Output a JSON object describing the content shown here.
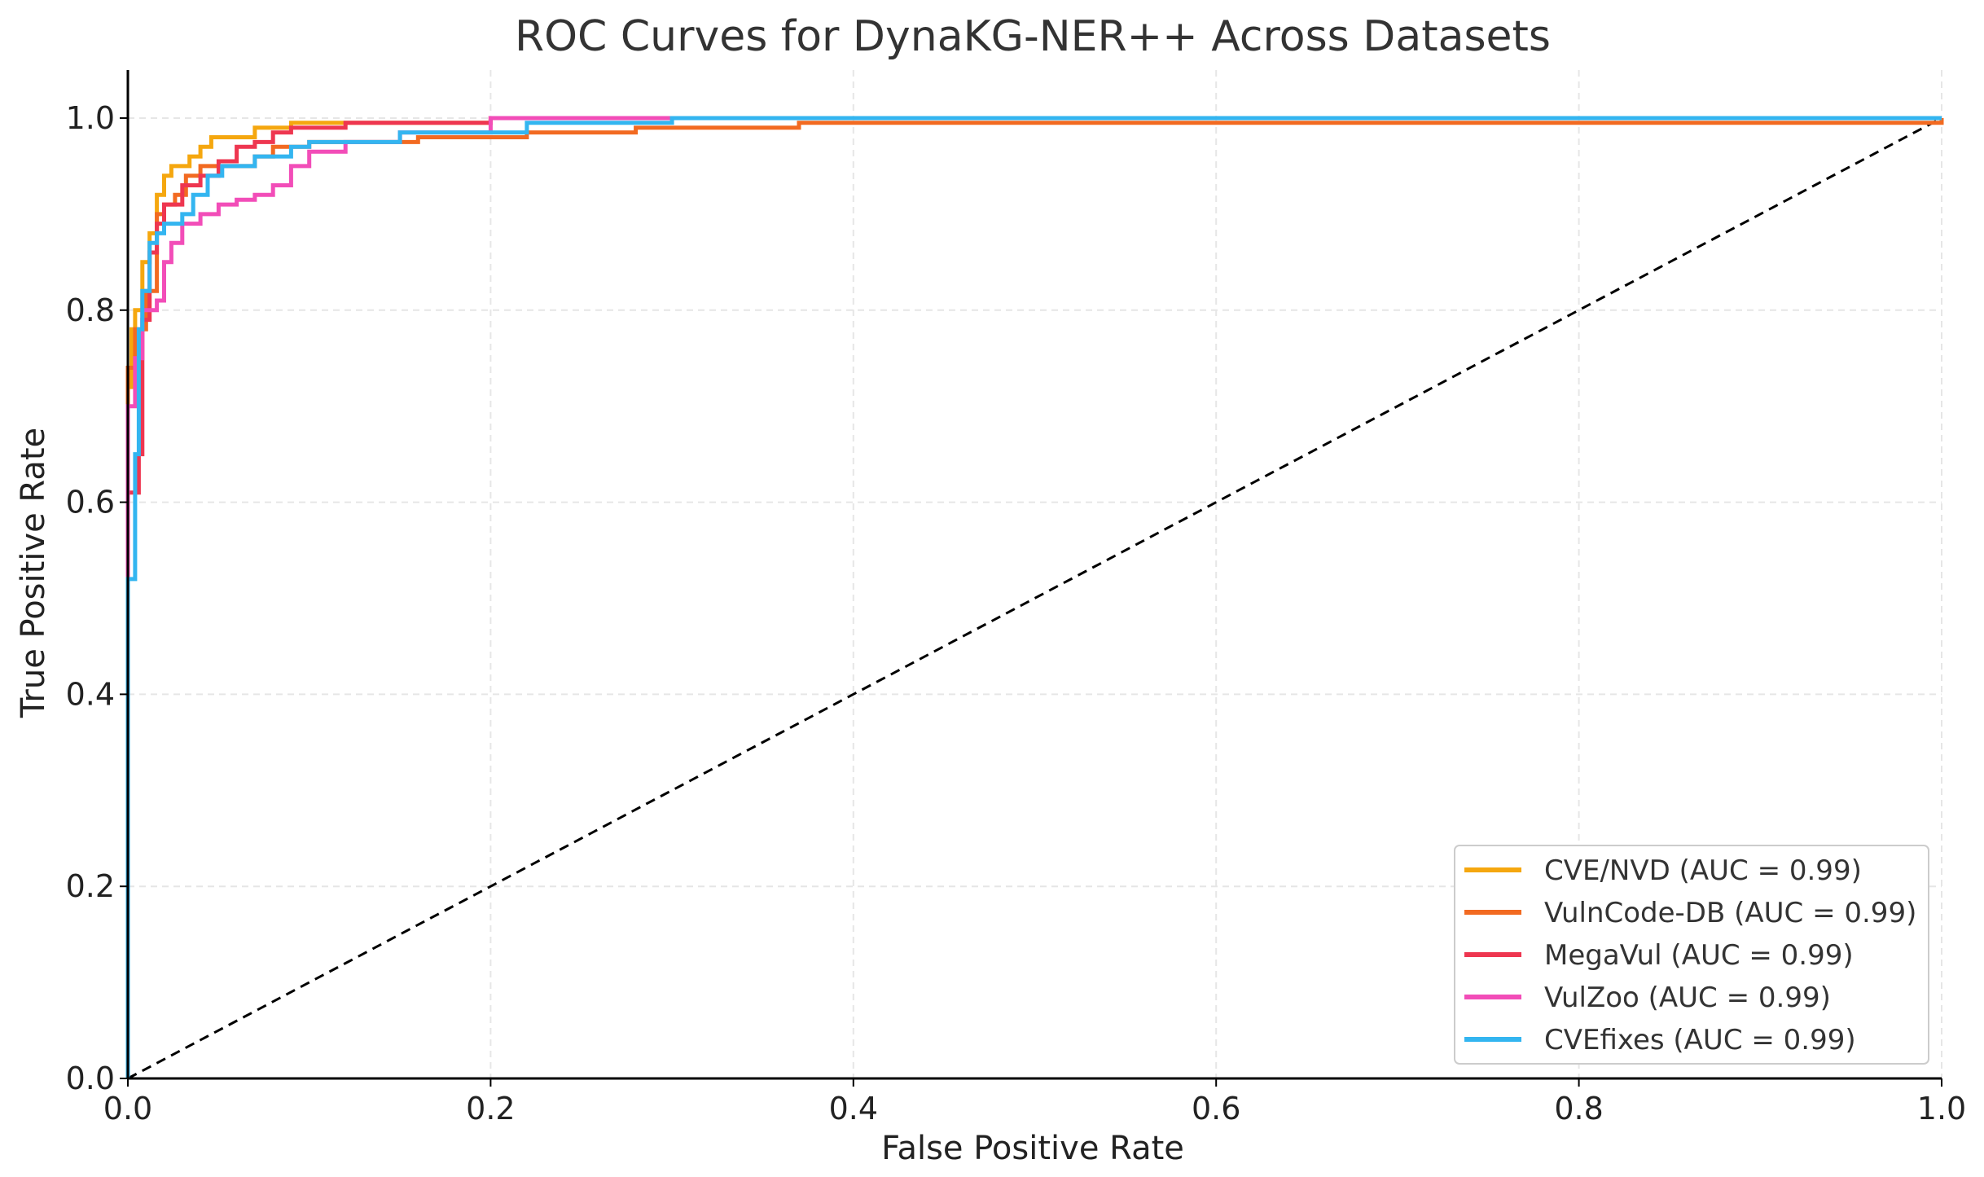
{
  "chart_data": {
    "type": "line",
    "title": "ROC Curves for DynaKG-NER++ Across Datasets",
    "xlabel": "False Positive Rate",
    "ylabel": "True Positive Rate",
    "xlim": [
      0.0,
      1.0
    ],
    "ylim": [
      0.0,
      1.05
    ],
    "grid": true,
    "legend_position": "lower-right",
    "x_ticks": [
      "0.0",
      "0.2",
      "0.4",
      "0.6",
      "0.8",
      "1.0"
    ],
    "y_ticks": [
      "0.0",
      "0.2",
      "0.4",
      "0.6",
      "0.8",
      "1.0"
    ],
    "x_tick_values": [
      0.0,
      0.2,
      0.4,
      0.6,
      0.8,
      1.0
    ],
    "y_tick_values": [
      0.0,
      0.2,
      0.4,
      0.6,
      0.8,
      1.0
    ],
    "series": [
      {
        "name": "CVE/NVD (AUC = 0.99)",
        "color": "#F5A70F",
        "x": [
          0.0,
          0.0,
          0.002,
          0.004,
          0.008,
          0.012,
          0.016,
          0.02,
          0.024,
          0.028,
          0.034,
          0.04,
          0.046,
          0.06,
          0.07,
          0.09,
          0.12,
          0.2,
          0.35,
          1.0
        ],
        "y": [
          0.0,
          0.72,
          0.78,
          0.8,
          0.85,
          0.88,
          0.92,
          0.94,
          0.95,
          0.95,
          0.96,
          0.97,
          0.98,
          0.98,
          0.99,
          0.995,
          0.995,
          1.0,
          1.0,
          1.0
        ]
      },
      {
        "name": "VulnCode-DB (AUC = 0.99)",
        "color": "#F26A21",
        "x": [
          0.0,
          0.0,
          0.004,
          0.01,
          0.016,
          0.02,
          0.026,
          0.032,
          0.04,
          0.05,
          0.07,
          0.08,
          0.1,
          0.14,
          0.16,
          0.22,
          0.28,
          0.37,
          1.0
        ],
        "y": [
          0.0,
          0.74,
          0.78,
          0.82,
          0.9,
          0.91,
          0.92,
          0.94,
          0.95,
          0.95,
          0.96,
          0.97,
          0.975,
          0.975,
          0.98,
          0.985,
          0.99,
          0.995,
          1.0
        ]
      },
      {
        "name": "MegaVul (AUC = 0.99)",
        "color": "#EE3650",
        "x": [
          0.0,
          0.0,
          0.004,
          0.006,
          0.008,
          0.012,
          0.016,
          0.02,
          0.03,
          0.04,
          0.05,
          0.06,
          0.07,
          0.08,
          0.09,
          0.12,
          0.2,
          0.3,
          1.0
        ],
        "y": [
          0.0,
          0.61,
          0.61,
          0.65,
          0.79,
          0.86,
          0.89,
          0.91,
          0.93,
          0.94,
          0.955,
          0.97,
          0.975,
          0.985,
          0.99,
          0.995,
          1.0,
          1.0,
          1.0
        ]
      },
      {
        "name": "VulZoo (AUC = 0.99)",
        "color": "#F24DB8",
        "x": [
          0.0,
          0.0,
          0.004,
          0.008,
          0.016,
          0.02,
          0.024,
          0.03,
          0.04,
          0.05,
          0.06,
          0.07,
          0.08,
          0.09,
          0.1,
          0.12,
          0.15,
          0.2,
          0.35,
          1.0
        ],
        "y": [
          0.0,
          0.7,
          0.75,
          0.8,
          0.81,
          0.85,
          0.87,
          0.89,
          0.9,
          0.91,
          0.915,
          0.92,
          0.93,
          0.95,
          0.965,
          0.975,
          0.985,
          1.0,
          1.0,
          1.0
        ]
      },
      {
        "name": "CVEfixes (AUC = 0.99)",
        "color": "#33B5F0",
        "x": [
          0.0,
          0.0,
          0.004,
          0.006,
          0.008,
          0.012,
          0.016,
          0.02,
          0.03,
          0.036,
          0.044,
          0.052,
          0.07,
          0.09,
          0.1,
          0.15,
          0.22,
          0.3,
          1.0
        ],
        "y": [
          0.0,
          0.52,
          0.65,
          0.78,
          0.82,
          0.87,
          0.88,
          0.89,
          0.9,
          0.92,
          0.94,
          0.95,
          0.96,
          0.97,
          0.975,
          0.985,
          0.995,
          1.0,
          1.0
        ]
      }
    ],
    "reference_line": {
      "name": "chance",
      "x": [
        0.0,
        1.0
      ],
      "y": [
        0.0,
        1.0
      ],
      "color": "#000000",
      "style": "dashed"
    }
  }
}
